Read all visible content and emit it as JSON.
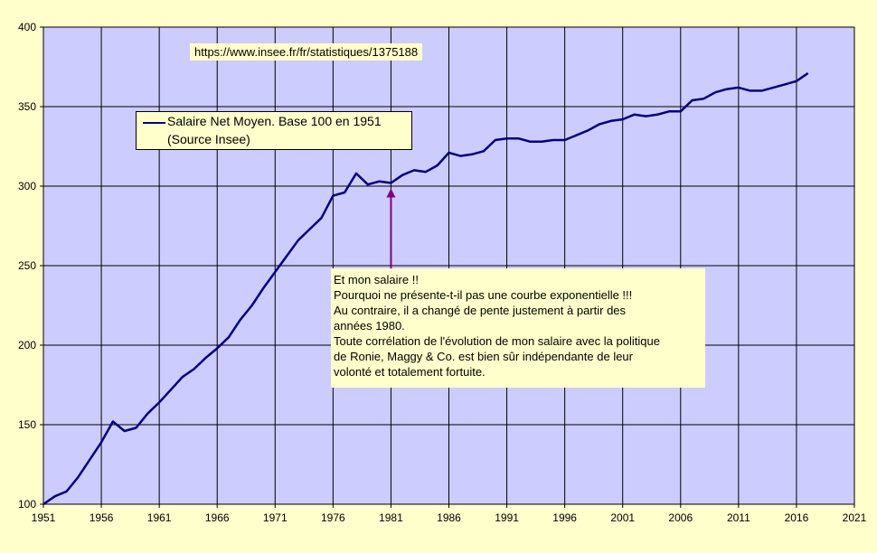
{
  "chart_data": {
    "type": "line",
    "title": "",
    "xlabel": "",
    "ylabel": "",
    "xlim": [
      1951,
      2021
    ],
    "ylim": [
      100,
      400
    ],
    "x_ticks": [
      "1951",
      "1956",
      "1961",
      "1966",
      "1971",
      "1976",
      "1981",
      "1986",
      "1991",
      "1996",
      "2001",
      "2006",
      "2011",
      "2016",
      "2021"
    ],
    "y_ticks": [
      "100",
      "150",
      "200",
      "250",
      "300",
      "350",
      "400"
    ],
    "grid": true,
    "legend": "upper-left",
    "series": [
      {
        "name": "Salaire Net Moyen. Base 100 en 1951",
        "name_line2": "(Source Insee)",
        "color": "#000080",
        "x": [
          1951,
          1952,
          1953,
          1954,
          1955,
          1956,
          1957,
          1958,
          1959,
          1960,
          1961,
          1962,
          1963,
          1964,
          1965,
          1966,
          1967,
          1968,
          1969,
          1970,
          1971,
          1972,
          1973,
          1974,
          1975,
          1976,
          1977,
          1978,
          1979,
          1980,
          1981,
          1982,
          1983,
          1984,
          1985,
          1986,
          1987,
          1988,
          1989,
          1990,
          1991,
          1992,
          1993,
          1994,
          1995,
          1996,
          1997,
          1998,
          1999,
          2000,
          2001,
          2002,
          2003,
          2004,
          2005,
          2006,
          2007,
          2008,
          2009,
          2010,
          2011,
          2012,
          2013,
          2014,
          2015,
          2016,
          2017
        ],
        "values": [
          100,
          105,
          108,
          117,
          128,
          139,
          152,
          146,
          148,
          157,
          164,
          172,
          180,
          185,
          192,
          198,
          205,
          216,
          225,
          236,
          246,
          256,
          266,
          273,
          280,
          294,
          296,
          308,
          301,
          303,
          302,
          307,
          310,
          309,
          313,
          321,
          319,
          320,
          322,
          329,
          330,
          330,
          328,
          328,
          329,
          329,
          332,
          335,
          339,
          341,
          342,
          345,
          344,
          345,
          347,
          347,
          354,
          355,
          359,
          361,
          362,
          360,
          360,
          362,
          364,
          366,
          371
        ]
      }
    ],
    "annotations": [
      {
        "type": "arrow",
        "x": 1981,
        "y": 302,
        "color": "#800080",
        "text": [
          "Et mon salaire !!",
          "Pourquoi ne présente-t-il pas une courbe exponentielle !!!",
          "Au contraire, il a changé de pente justement à partir des",
          "années 1980.",
          "Toute corrélation de l'évolution de mon salaire avec la politique",
          "de Ronie, Maggy & Co. est bien sûr indépendante de leur",
          "volonté et totalement fortuite."
        ]
      }
    ],
    "source_text": "https://www.insee.fr/fr/statistiques/1375188",
    "plot_bg": "#ccccff",
    "page_bg": "#ffffcc"
  }
}
